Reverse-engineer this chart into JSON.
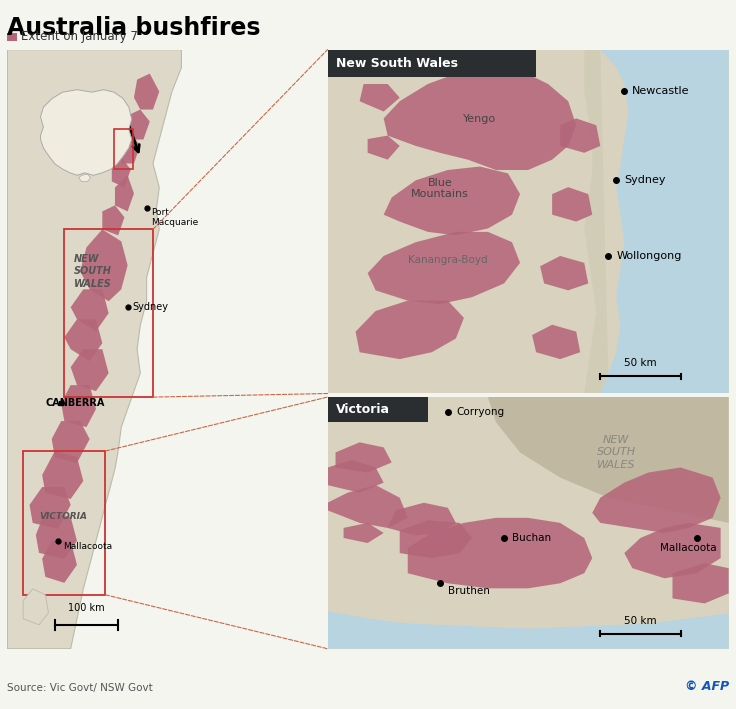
{
  "title": "Australia bushfires",
  "subtitle_square_color": "#b5667a",
  "subtitle_text": "Extent on January 7",
  "source": "Source: Vic Govt/ NSW Govt",
  "copyright": "© AFP",
  "fire_color": "#b5667a",
  "land_color_main": "#ddd8c8",
  "land_color_nsw_inset": "#d8d2be",
  "land_color_vic_inset": "#d8d2be",
  "nsw_border_area_color": "#c8c2ae",
  "water_color": "#b8d4e0",
  "aus_inset_water": "#7aafc8",
  "aus_inset_land": "#f0ece0",
  "box_red": "#cc3333",
  "header_bg": "#2a2e30",
  "header_text": "#ffffff",
  "background_color": "#f5f5f0",
  "map_border": "#bbbbaa",
  "canberra_label": "CANBERRA",
  "scale_100km": "100 km",
  "scale_50km": "50 km"
}
